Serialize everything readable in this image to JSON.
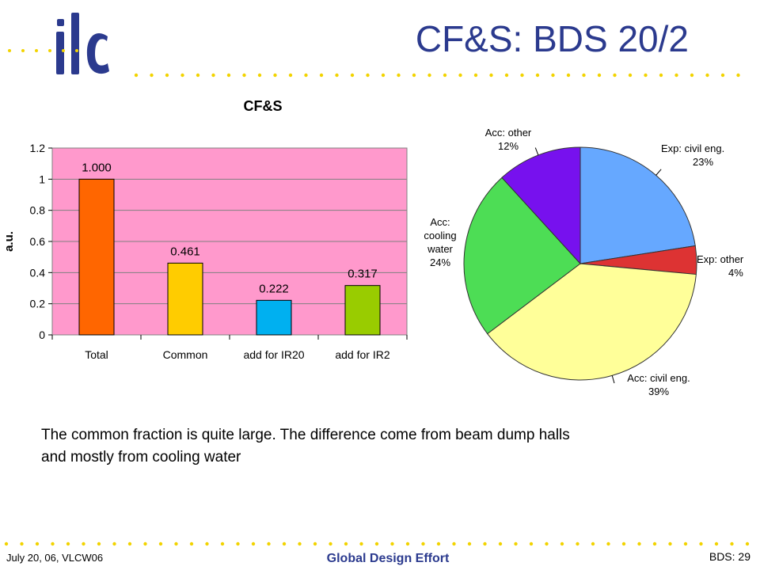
{
  "slide": {
    "title": "CF&S: BDS 20/2",
    "logo_text": "ilc",
    "body_text_line1": "The common fraction is quite large. The difference come from beam dump halls",
    "body_text_line2": "and mostly from cooling water",
    "footer_left": "July 20, 06, VLCW06",
    "footer_center": "Global Design Effort",
    "footer_right": "BDS: 29"
  },
  "colors": {
    "title": "#2b3a8e",
    "dots": "#f2d300",
    "plot_bg": "#ff99cc"
  },
  "chart_data": [
    {
      "type": "bar",
      "title": "CF&S",
      "ylabel": "a.u.",
      "xlabel": "",
      "categories": [
        "Total",
        "Common",
        "add for IR20",
        "add for IR2"
      ],
      "values": [
        1.0,
        0.461,
        0.222,
        0.317
      ],
      "value_labels": [
        "1.000",
        "0.461",
        "0.222",
        "0.317"
      ],
      "bar_colors": [
        "#ff6600",
        "#ffcc00",
        "#00b0f0",
        "#99cc00"
      ],
      "ylim": [
        0,
        1.2
      ],
      "yticks": [
        0,
        0.2,
        0.4,
        0.6,
        0.8,
        1,
        1.2
      ],
      "ytick_labels": [
        "0",
        "0.2",
        "0.4",
        "0.6",
        "0.8",
        "1",
        "1.2"
      ],
      "grid": true,
      "legend": "none"
    },
    {
      "type": "pie",
      "slices": [
        {
          "label_lines": [
            "Exp: civil eng.",
            "23%"
          ],
          "value": 23,
          "color": "#66a8ff"
        },
        {
          "label_lines": [
            "Exp: other",
            "4%"
          ],
          "value": 4,
          "color": "#dd3333"
        },
        {
          "label_lines": [
            "Acc: civil eng.",
            "39%"
          ],
          "value": 39,
          "color": "#ffff99"
        },
        {
          "label_lines": [
            "Acc:",
            "cooling",
            "water",
            "24%"
          ],
          "value": 24,
          "color": "#4ddd55"
        },
        {
          "label_lines": [
            "Acc: other",
            "12%"
          ],
          "value": 12,
          "color": "#7711ee"
        }
      ]
    }
  ]
}
